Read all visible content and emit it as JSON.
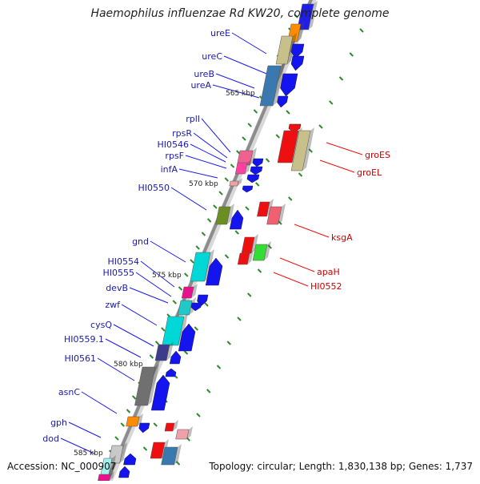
{
  "title": "Haemophilus influenzae Rd KW20, complete genome",
  "footer": {
    "accession": "Accession: NC_000907",
    "topology": "Topology: circular; Length: 1,830,138 bp; Genes: 1,737"
  },
  "colors": {
    "backbone": "#8c8c8c",
    "left_label": "#1a1aa8",
    "right_label": "#cc0000",
    "tick": "#2e8b2e"
  },
  "scale_marks": [
    "565 kbp",
    "570 kbp",
    "575 kbp",
    "580 kbp",
    "585 kbp"
  ],
  "left_labels": [
    "ureE",
    "ureC",
    "ureB",
    "ureA",
    "rplI",
    "rpsR",
    "HI0546",
    "rpsF",
    "infA",
    "HI0550",
    "gnd",
    "HI0554",
    "HI0555",
    "devB",
    "zwf",
    "cysQ",
    "HI0559.1",
    "HI0561",
    "asnC",
    "gph",
    "dod"
  ],
  "right_labels": [
    "groES",
    "groEL",
    "ksgA",
    "apaH",
    "HI0552"
  ]
}
